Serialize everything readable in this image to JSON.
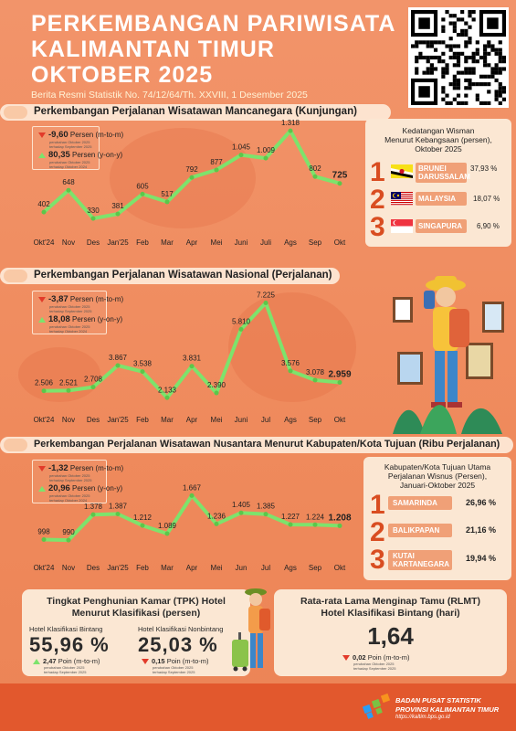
{
  "header": {
    "title_lines": [
      "PERKEMBANGAN PARIWISATA",
      "KALIMANTAN TIMUR",
      "OKTOBER 2025"
    ],
    "subtitle": "Berita Resmi Statistik No. 74/12/64/Th. XXVIII, 1 Desember 2025"
  },
  "months": [
    "Okt'24",
    "Nov",
    "Des",
    "Jan'25",
    "Feb",
    "Mar",
    "Apr",
    "Mei",
    "Juni",
    "Juli",
    "Ags",
    "Sep",
    "Okt"
  ],
  "months_b": [
    "Okt'24",
    "Nov",
    "Des",
    "Jan'25",
    "Feb",
    "Mar",
    "Apr",
    "Mei",
    "Juni",
    "Jul",
    "Ags",
    "Sep",
    "Okt"
  ],
  "months_c": [
    "Okt'24",
    "Nov",
    "Des",
    "Jan'25",
    "Feb",
    "Mar",
    "Apr",
    "Mei",
    "Jun",
    "Jul",
    "Ags",
    "Sep",
    "Okt"
  ],
  "wisman": {
    "title": "Perkembangan Perjalanan Wisatawan Mancanegara (Kunjungan)",
    "mtm_value": "-9,60",
    "mtm_label": "Persen (m-to-m)",
    "yoy_value": "80,35",
    "yoy_label": "Persen (y-on-y)",
    "note1": "perubahan Oktober 2025",
    "note2": "terhadap September 2025",
    "note3": "perubahan Oktober 2025",
    "note4": "terhadap Oktober 2024",
    "labels": [
      "402",
      "648",
      "330",
      "381",
      "605",
      "517",
      "792",
      "877",
      "1.045",
      "1.009",
      "1.318",
      "802",
      "725"
    ]
  },
  "wisnas": {
    "title": "Perkembangan Perjalanan Wisatawan Nasional (Perjalanan)",
    "mtm_value": "-3,87",
    "mtm_label": "Persen (m-to-m)",
    "yoy_value": "18,08",
    "yoy_label": "Persen (y-on-y)",
    "note1": "perubahan Oktober 2025",
    "note2": "terhadap September 2025",
    "note3": "perubahan Oktober 2025",
    "note4": "terhadap Oktober 2024",
    "labels": [
      "2.506",
      "2.521",
      "2.708",
      "3.867",
      "3.538",
      "2.133",
      "3.831",
      "2.390",
      "5.810",
      "7.225",
      "3.576",
      "3.078",
      "2.959"
    ]
  },
  "wisnus": {
    "title": "Perkembangan Perjalanan Wisatawan Nusantara Menurut Kabupaten/Kota Tujuan (Ribu Perjalanan)",
    "mtm_value": "-1,32",
    "mtm_label": "Persen (m-to-m)",
    "yoy_value": "20,96",
    "yoy_label": "Persen (y-on-y)",
    "note1": "perubahan Oktober 2025",
    "note2": "terhadap September 2025",
    "note3": "perubahan Oktober 2025",
    "note4": "terhadap Oktober 2024",
    "labels": [
      "998",
      "990",
      "1.378",
      "1.387",
      "1.212",
      "1.089",
      "1.667",
      "1.236",
      "1.405",
      "1.385",
      "1.227",
      "1.224",
      "1.208"
    ]
  },
  "chart_data": [
    {
      "type": "line",
      "title": "Perkembangan Perjalanan Wisatawan Mancanegara (Kunjungan)",
      "categories": [
        "Okt'24",
        "Nov",
        "Des",
        "Jan'25",
        "Feb",
        "Mar",
        "Apr",
        "Mei",
        "Juni",
        "Juli",
        "Ags",
        "Sep",
        "Okt"
      ],
      "values": [
        402,
        648,
        330,
        381,
        605,
        517,
        792,
        877,
        1045,
        1009,
        1318,
        802,
        725
      ],
      "ylim": [
        300,
        1350
      ]
    },
    {
      "type": "line",
      "title": "Perkembangan Perjalanan Wisatawan Nasional (Perjalanan)",
      "categories": [
        "Okt'24",
        "Nov",
        "Des",
        "Jan'25",
        "Feb",
        "Mar",
        "Apr",
        "Mei",
        "Juni",
        "Jul",
        "Ags",
        "Sep",
        "Okt"
      ],
      "values": [
        2506,
        2521,
        2708,
        3867,
        3538,
        2133,
        3831,
        2390,
        5810,
        7225,
        3576,
        3078,
        2959
      ],
      "ylim": [
        2000,
        7300
      ]
    },
    {
      "type": "line",
      "title": "Perkembangan Perjalanan Wisatawan Nusantara Menurut Kabupaten/Kota Tujuan (Ribu Perjalanan)",
      "categories": [
        "Okt'24",
        "Nov",
        "Des",
        "Jan'25",
        "Feb",
        "Mar",
        "Apr",
        "Mei",
        "Jun",
        "Jul",
        "Ags",
        "Sep",
        "Okt"
      ],
      "values": [
        998,
        990,
        1378,
        1387,
        1212,
        1089,
        1667,
        1236,
        1405,
        1385,
        1227,
        1224,
        1208
      ],
      "ylim": [
        950,
        1700
      ]
    }
  ],
  "wisman_rank": {
    "head": [
      "Kedatangan Wisman",
      "Menurut Kebangsaan (persen),",
      "Oktober 2025"
    ],
    "items": [
      {
        "num": "1",
        "name1": "BRUNEI",
        "name2": "DARUSSALAM",
        "value": "37,93 %",
        "flag": "brunei-flag-icon"
      },
      {
        "num": "2",
        "name1": "MALAYSIA",
        "name2": "",
        "value": "18,07 %",
        "flag": "malaysia-flag-icon"
      },
      {
        "num": "3",
        "name1": "SINGAPURA",
        "name2": "",
        "value": "6,90 %",
        "flag": "singapore-flag-icon"
      }
    ]
  },
  "wisnus_rank": {
    "head": [
      "Kabupaten/Kota Tujuan Utama",
      "Perjalanan Wisnus (Persen),",
      "Januari-Oktober 2025"
    ],
    "items": [
      {
        "num": "1",
        "name1": "SAMARINDA",
        "name2": "",
        "value": "26,96 %"
      },
      {
        "num": "2",
        "name1": "BALIKPAPAN",
        "name2": "",
        "value": "21,16 %"
      },
      {
        "num": "3",
        "name1": "KUTAI",
        "name2": "KARTANEGARA",
        "value": "19,94 %"
      }
    ]
  },
  "tpk": {
    "title1": "Tingkat Penghunian Kamar (TPK) Hotel",
    "title2": "Menurut Klasifikasi (persen)",
    "bintang_label": "Hotel Klasifikasi Bintang",
    "bintang_value": "55,96 %",
    "bintang_change": "2,47",
    "bintang_change_label": "Poin (m-to-m)",
    "nonbintang_label": "Hotel Klasifikasi Nonbintang",
    "nonbintang_value": "25,03 %",
    "nonbintang_change": "0,15",
    "nonbintang_change_label": "Poin (m-to-m)",
    "note1": "perubahan Oktober 2025",
    "note2": "terhadap September 2025"
  },
  "rlmt": {
    "title1": "Rata-rata Lama Menginap Tamu (RLMT)",
    "title2": "Hotel Klasifikasi Bintang (hari)",
    "value": "1,64",
    "change": "0,02",
    "change_label": "Poin (m-to-m)",
    "note1": "perubahan Oktober 2025",
    "note2": "terhadap September 2025"
  },
  "footer": {
    "org1": "BADAN PUSAT STATISTIK",
    "org2": "PROVINSI KALIMANTAN TIMUR",
    "url": "https://kaltim.bps.go.id"
  },
  "colors": {
    "background": "#ef8a5c",
    "line": "#7de36c",
    "accent": "#d94d21",
    "panel": "#fbe7d3"
  }
}
